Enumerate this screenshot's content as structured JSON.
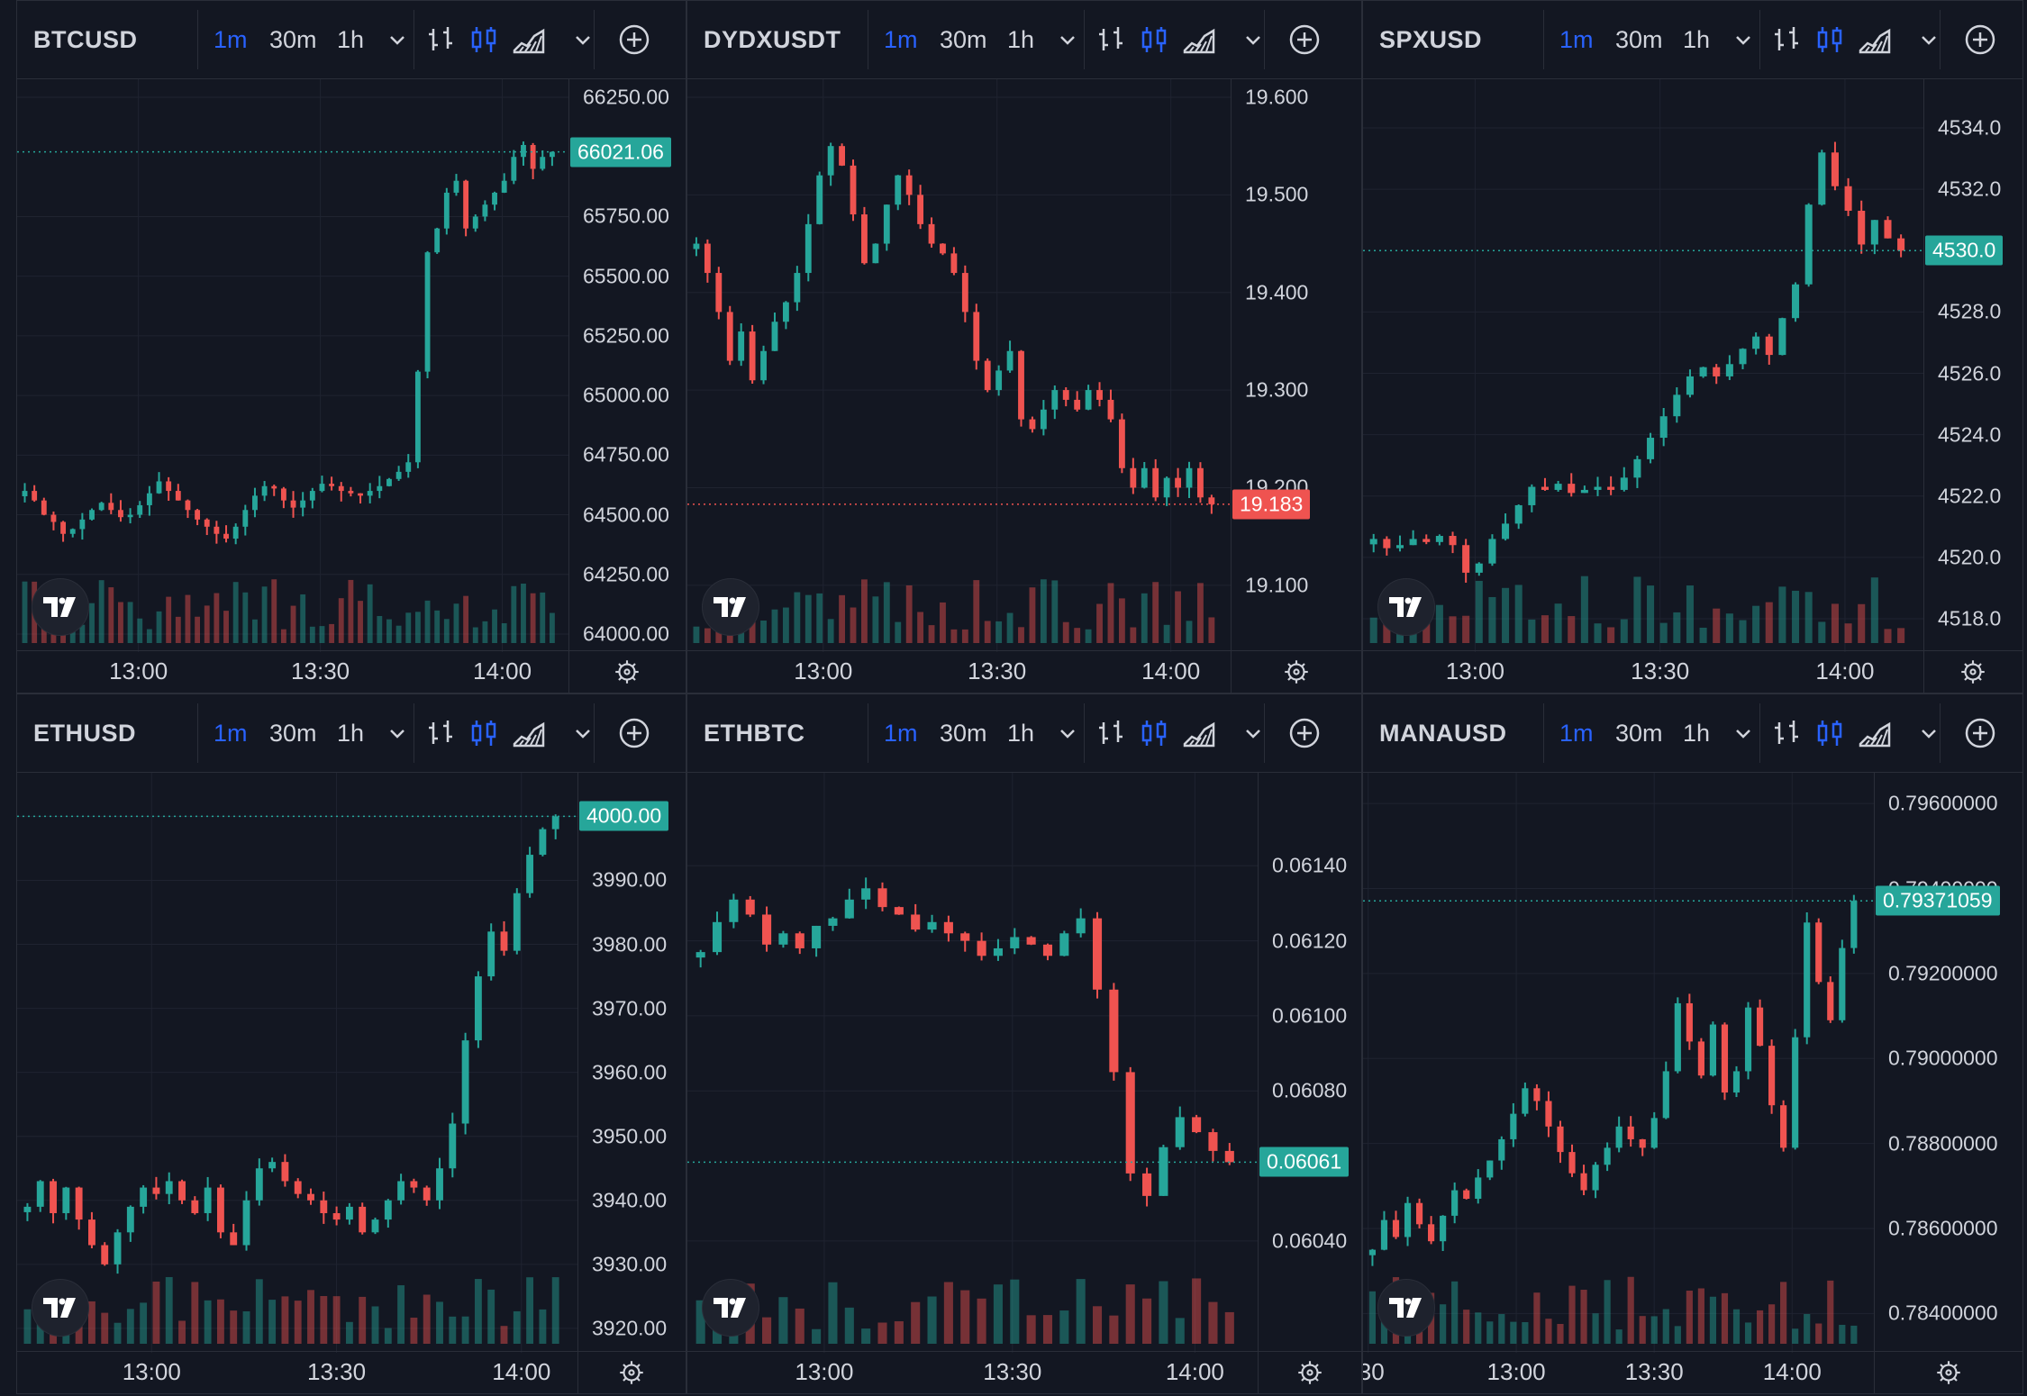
{
  "colors": {
    "bg": "#131722",
    "border": "#2a2e39",
    "grid": "#1f2330",
    "up": "#26a69a",
    "down": "#ef5350",
    "accent": "#2962ff",
    "text": "#d1d4dc"
  },
  "timeframes": [
    "1m",
    "30m",
    "1h"
  ],
  "active_timeframe": "1m",
  "toolbar_icons": [
    "bar-style-icon",
    "candles-icon",
    "area-chart-icon",
    "chevron-down-icon",
    "add-symbol-icon"
  ],
  "panes": [
    {
      "symbol": "BTCUSD",
      "price_labels": [
        "66250.00",
        "65750.00",
        "65500.00",
        "65250.00",
        "65000.00",
        "64750.00",
        "64500.00",
        "64250.00",
        "64000.00"
      ],
      "price_values": [
        66250,
        65750,
        65500,
        65250,
        65000,
        64750,
        64500,
        64250,
        64000
      ],
      "last_price": "66021.06",
      "last_value": 66021.06,
      "last_color": "up",
      "time_labels": [
        "13:00",
        "13:30",
        "14:00"
      ],
      "time_values": [
        0.22,
        0.55,
        0.88
      ],
      "y_range": [
        64000,
        66250
      ],
      "chart_data": {
        "type": "candlestick",
        "symbol": "BTCUSD",
        "y_range": [
          64000,
          66250
        ],
        "closes": [
          64600,
          64560,
          64500,
          64470,
          64420,
          64440,
          64480,
          64520,
          64550,
          64520,
          64490,
          64500,
          64540,
          64590,
          64640,
          64600,
          64560,
          64520,
          64480,
          64450,
          64420,
          64400,
          64450,
          64520,
          64580,
          64620,
          64610,
          64560,
          64530,
          64560,
          64600,
          64630,
          64620,
          64600,
          64590,
          64580,
          64600,
          64620,
          64650,
          64680,
          64720,
          65100,
          65600,
          65700,
          65850,
          65900,
          65700,
          65750,
          65800,
          65850,
          65900,
          66000,
          66050,
          65950,
          66000,
          66021.06
        ]
      }
    },
    {
      "symbol": "DYDXUSDT",
      "price_labels": [
        "19.600",
        "19.500",
        "19.400",
        "19.300",
        "19.200",
        "19.100"
      ],
      "price_values": [
        19.6,
        19.5,
        19.4,
        19.3,
        19.2,
        19.1
      ],
      "last_price": "19.183",
      "last_value": 19.183,
      "last_color": "down",
      "time_labels": [
        "13:00",
        "13:30",
        "14:00"
      ],
      "time_values": [
        0.25,
        0.57,
        0.89
      ],
      "y_range": [
        19.05,
        19.6
      ],
      "chart_data": {
        "type": "candlestick",
        "symbol": "DYDXUSDT",
        "y_range": [
          19.05,
          19.6
        ],
        "closes": [
          19.45,
          19.42,
          19.38,
          19.33,
          19.36,
          19.31,
          19.34,
          19.37,
          19.39,
          19.42,
          19.47,
          19.52,
          19.55,
          19.53,
          19.48,
          19.43,
          19.45,
          19.49,
          19.52,
          19.5,
          19.47,
          19.45,
          19.44,
          19.42,
          19.38,
          19.33,
          19.3,
          19.32,
          19.34,
          19.27,
          19.26,
          19.28,
          19.3,
          19.29,
          19.28,
          19.3,
          19.29,
          19.27,
          19.22,
          19.2,
          19.22,
          19.19,
          19.21,
          19.2,
          19.22,
          19.19,
          19.183
        ]
      }
    },
    {
      "symbol": "SPXUSD",
      "price_labels": [
        "4534.0",
        "4532.0",
        "4528.0",
        "4526.0",
        "4524.0",
        "4522.0",
        "4520.0",
        "4518.0"
      ],
      "price_values": [
        4534,
        4532,
        4528,
        4526,
        4524,
        4522,
        4520,
        4518
      ],
      "last_price": "4530.0",
      "last_value": 4530.0,
      "last_color": "up",
      "time_labels": [
        "13:00",
        "13:30",
        "14:00"
      ],
      "time_values": [
        0.2,
        0.53,
        0.86
      ],
      "y_range": [
        4517.5,
        4535
      ],
      "chart_data": {
        "type": "candlestick",
        "symbol": "SPXUSD",
        "y_range": [
          4517.5,
          4535
        ],
        "closes": [
          4520.6,
          4520.3,
          4520.4,
          4520.6,
          4520.5,
          4520.7,
          4520.4,
          4519.5,
          4519.8,
          4520.6,
          4521.1,
          4521.7,
          4522.3,
          4522.2,
          4522.4,
          4522.1,
          4522.2,
          4522.3,
          4522.2,
          4522.6,
          4523.2,
          4523.9,
          4524.6,
          4525.3,
          4525.9,
          4526.2,
          4525.9,
          4526.3,
          4526.8,
          4527.2,
          4526.6,
          4527.8,
          4528.9,
          4531.5,
          4533.2,
          4532.1,
          4531.3,
          4530.2,
          4531.0,
          4530.4,
          4530.0
        ]
      }
    },
    {
      "symbol": "ETHUSD",
      "price_labels": [
        "4000.00",
        "3990.00",
        "3980.00",
        "3970.00",
        "3960.00",
        "3950.00",
        "3940.00",
        "3930.00",
        "3920.00"
      ],
      "price_values": [
        4000,
        3990,
        3980,
        3970,
        3960,
        3950,
        3940,
        3930,
        3920
      ],
      "last_price": "4000.00",
      "last_value": 4000.0,
      "last_color": "up",
      "time_labels": [
        "13:00",
        "13:30",
        "14:00"
      ],
      "time_values": [
        0.24,
        0.57,
        0.9
      ],
      "y_range": [
        3919,
        4004
      ],
      "chart_data": {
        "type": "candlestick",
        "symbol": "ETHUSD",
        "y_range": [
          3919,
          4004
        ],
        "closes": [
          3939,
          3943,
          3938,
          3942,
          3937,
          3933,
          3930,
          3935,
          3939,
          3942,
          3941,
          3943,
          3940,
          3938,
          3942,
          3935,
          3933,
          3940,
          3945,
          3946,
          3943,
          3941,
          3940,
          3938,
          3937,
          3939,
          3935,
          3937,
          3940,
          3943,
          3942,
          3940,
          3945,
          3952,
          3965,
          3975,
          3982,
          3979,
          3988,
          3994,
          3998,
          4000
        ]
      }
    },
    {
      "symbol": "ETHBTC",
      "price_labels": [
        "0.06140",
        "0.06120",
        "0.06100",
        "0.06080",
        "0.06040"
      ],
      "price_values": [
        0.0614,
        0.0612,
        0.061,
        0.0608,
        0.0604
      ],
      "last_price": "0.06061",
      "last_value": 0.06061,
      "last_color": "up",
      "time_labels": [
        "13:00",
        "13:30",
        "14:00"
      ],
      "time_values": [
        0.24,
        0.57,
        0.89
      ],
      "y_range": [
        0.06015,
        0.0616
      ],
      "chart_data": {
        "type": "candlestick",
        "symbol": "ETHBTC",
        "y_range": [
          0.06015,
          0.0616
        ],
        "closes": [
          0.06117,
          0.06125,
          0.06131,
          0.06127,
          0.06119,
          0.06122,
          0.06118,
          0.06124,
          0.06126,
          0.06131,
          0.06134,
          0.06129,
          0.06127,
          0.06123,
          0.06125,
          0.06122,
          0.0612,
          0.06116,
          0.06118,
          0.06121,
          0.06119,
          0.06116,
          0.06122,
          0.06126,
          0.06107,
          0.06085,
          0.06058,
          0.06052,
          0.06065,
          0.06073,
          0.06069,
          0.06064,
          0.06061
        ]
      }
    },
    {
      "symbol": "MANAUSD",
      "price_labels": [
        "0.79600000",
        "0.79400000",
        "0.79200000",
        "0.79000000",
        "0.78800000",
        "0.78600000",
        "0.78400000"
      ],
      "price_values": [
        0.796,
        0.794,
        0.792,
        0.79,
        0.788,
        0.786,
        0.784
      ],
      "last_price": "0.79371059",
      "last_value": 0.79371059,
      "last_color": "up",
      "time_labels": [
        ":30",
        "13:00",
        "13:30",
        "14:00"
      ],
      "time_values": [
        0.01,
        0.3,
        0.57,
        0.84
      ],
      "y_range": [
        0.7835,
        0.7963
      ],
      "chart_data": {
        "type": "candlestick",
        "symbol": "MANAUSD",
        "y_range": [
          0.7835,
          0.7963
        ],
        "closes": [
          0.7855,
          0.7862,
          0.7858,
          0.7866,
          0.7861,
          0.7857,
          0.7863,
          0.7869,
          0.7867,
          0.7872,
          0.7876,
          0.7881,
          0.7887,
          0.7893,
          0.789,
          0.7884,
          0.7878,
          0.7873,
          0.7869,
          0.7875,
          0.7879,
          0.7884,
          0.7881,
          0.7879,
          0.7886,
          0.7897,
          0.7913,
          0.7904,
          0.7896,
          0.7908,
          0.7892,
          0.7897,
          0.7912,
          0.7903,
          0.7889,
          0.7879,
          0.7905,
          0.7932,
          0.7918,
          0.7909,
          0.7926,
          0.79371059
        ]
      }
    }
  ]
}
